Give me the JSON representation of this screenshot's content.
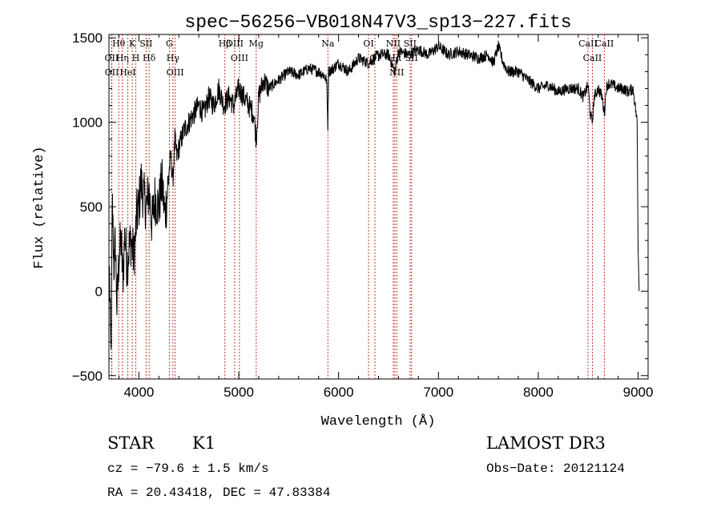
{
  "chart_data": {
    "type": "line",
    "title": "spec−56256−VB018N47V3_sp13−227.fits",
    "xlabel": "Wavelength (Å)",
    "ylabel": "Flux (relative)",
    "xlim": [
      3700,
      9100
    ],
    "ylim": [
      -520,
      1520
    ],
    "x_ticks": [
      4000,
      5000,
      6000,
      7000,
      8000,
      9000
    ],
    "y_ticks": [
      -500,
      0,
      500,
      1000,
      1500
    ],
    "x_tick_labels": [
      "4000",
      "5000",
      "6000",
      "7000",
      "8000",
      "9000"
    ],
    "y_tick_labels": [
      "−500",
      "0",
      "500",
      "1000",
      "1500"
    ],
    "grid": false,
    "series": [
      {
        "x": [
          3705,
          3720,
          3735,
          3750,
          3765,
          3780,
          3800,
          3820,
          3840,
          3860,
          3880,
          3900,
          3920,
          3950,
          3980,
          4000,
          4020,
          4050,
          4080,
          4100,
          4130,
          4160,
          4200,
          4230,
          4260,
          4280,
          4300,
          4320,
          4340,
          4360,
          4380,
          4400,
          4450,
          4500,
          4550,
          4600,
          4650,
          4700,
          4750,
          4800,
          4850,
          4900,
          4950,
          5000,
          5050,
          5100,
          5150,
          5175,
          5200,
          5250,
          5300,
          5400,
          5500,
          5600,
          5700,
          5800,
          5850,
          5880,
          5892,
          5900,
          5950,
          6000,
          6100,
          6200,
          6300,
          6400,
          6500,
          6563,
          6600,
          6700,
          6800,
          6900,
          7000,
          7100,
          7200,
          7300,
          7400,
          7500,
          7550,
          7600,
          7650,
          7700,
          7800,
          7900,
          8000,
          8100,
          8200,
          8300,
          8400,
          8450,
          8500,
          8520,
          8542,
          8560,
          8600,
          8640,
          8662,
          8680,
          8700,
          8750,
          8800,
          8850,
          8900,
          8950,
          8990,
          9000,
          9010
        ],
        "y": [
          100,
          -400,
          500,
          150,
          300,
          -100,
          200,
          300,
          80,
          350,
          150,
          250,
          300,
          200,
          450,
          500,
          650,
          550,
          500,
          600,
          400,
          550,
          500,
          650,
          450,
          550,
          700,
          800,
          650,
          900,
          800,
          850,
          950,
          1000,
          1050,
          1100,
          1050,
          1150,
          1100,
          1200,
          1100,
          1150,
          1100,
          1200,
          1150,
          1100,
          1050,
          900,
          1150,
          1250,
          1200,
          1250,
          1300,
          1280,
          1320,
          1300,
          1280,
          1250,
          980,
          1300,
          1320,
          1350,
          1300,
          1380,
          1350,
          1400,
          1400,
          1300,
          1420,
          1400,
          1430,
          1400,
          1450,
          1400,
          1420,
          1400,
          1380,
          1400,
          1350,
          1450,
          1350,
          1300,
          1300,
          1250,
          1200,
          1220,
          1180,
          1200,
          1200,
          1150,
          1220,
          1050,
          1000,
          1150,
          1200,
          1150,
          1050,
          1200,
          1230,
          1220,
          1200,
          1200,
          1180,
          1200,
          1000,
          250,
          0
        ]
      }
    ],
    "line_markers": [
      {
        "label": "Hθ",
        "wavelength": 3798
      },
      {
        "label": "OII",
        "wavelength": 3727
      },
      {
        "label": "OII",
        "wavelength": 3729
      },
      {
        "label": "Hη",
        "wavelength": 3835
      },
      {
        "label": "HeI",
        "wavelength": 3889
      },
      {
        "label": "K",
        "wavelength": 3934
      },
      {
        "label": "H",
        "wavelength": 3969
      },
      {
        "label": "SII",
        "wavelength": 4072
      },
      {
        "label": "Hδ",
        "wavelength": 4102
      },
      {
        "label": "G",
        "wavelength": 4305
      },
      {
        "label": "Hγ",
        "wavelength": 4341
      },
      {
        "label": "OIII",
        "wavelength": 4363
      },
      {
        "label": "Hβ",
        "wavelength": 4861
      },
      {
        "label": "OIII",
        "wavelength": 4959
      },
      {
        "label": "OIII",
        "wavelength": 5007
      },
      {
        "label": "Mg",
        "wavelength": 5175
      },
      {
        "label": "Na",
        "wavelength": 5893
      },
      {
        "label": "OI",
        "wavelength": 6300
      },
      {
        "label": "OI",
        "wavelength": 6364
      },
      {
        "label": "NII",
        "wavelength": 6548
      },
      {
        "label": "Hα",
        "wavelength": 6563
      },
      {
        "label": "NII",
        "wavelength": 6583
      },
      {
        "label": "SII",
        "wavelength": 6716
      },
      {
        "label": "SII",
        "wavelength": 6731
      },
      {
        "label": "CaII",
        "wavelength": 8498
      },
      {
        "label": "CaII",
        "wavelength": 8542
      },
      {
        "label": "CaII",
        "wavelength": 8662
      }
    ]
  },
  "info": {
    "class_label": "STAR",
    "subclass_label": "K1",
    "survey": "LAMOST DR3",
    "cz_line": "cz = −79.6 ± 1.5 km/s",
    "obs_date": "Obs−Date: 20121124",
    "coords": "RA =  20.43418, DEC =  47.83384"
  },
  "colors": {
    "line": "#000000",
    "marker": "#c0392b",
    "background": "#ffffff"
  }
}
